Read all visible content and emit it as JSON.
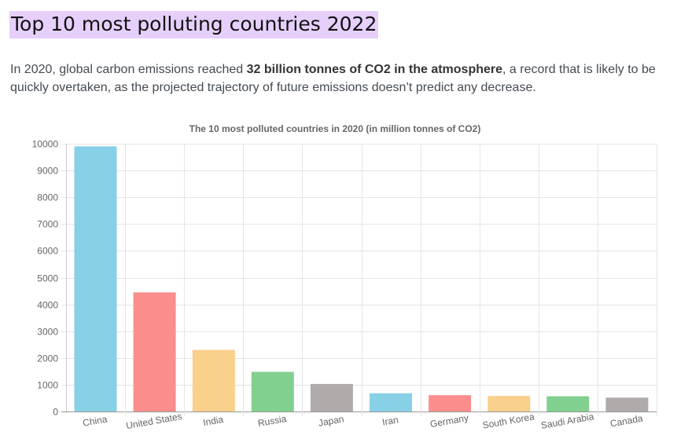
{
  "page": {
    "title": "Top 10 most polluting countries 2022",
    "intro_before": "In 2020, global carbon emissions reached ",
    "intro_bold": "32 billion tonnes of CO2 in the atmosphere",
    "intro_after": ", a record that is likely to be quickly overtaken, as the projected trajectory of future emissions doesn’t predict any decrease."
  },
  "chart_data": {
    "type": "bar",
    "title": "The 10 most polluted countries in 2020 (in million tonnes of CO2)",
    "xlabel": "",
    "ylabel": "",
    "categories": [
      "China",
      "United States",
      "India",
      "Russia",
      "Japan",
      "Iran",
      "Germany",
      "South Korea",
      "Saudi Arabia",
      "Canada"
    ],
    "values": [
      9900,
      4450,
      2300,
      1480,
      1030,
      680,
      610,
      580,
      570,
      520
    ],
    "ylim": [
      0,
      10000
    ],
    "yticks": [
      0,
      1000,
      2000,
      3000,
      4000,
      5000,
      6000,
      7000,
      8000,
      9000,
      10000
    ],
    "grid": true,
    "legend": "none",
    "colors": [
      "#87d0e6",
      "#fb8d8d",
      "#f9d08c",
      "#82d08f",
      "#b0aaaa",
      "#87d0e6",
      "#fb8d8d",
      "#f9d08c",
      "#82d08f",
      "#b0aaaa"
    ]
  }
}
